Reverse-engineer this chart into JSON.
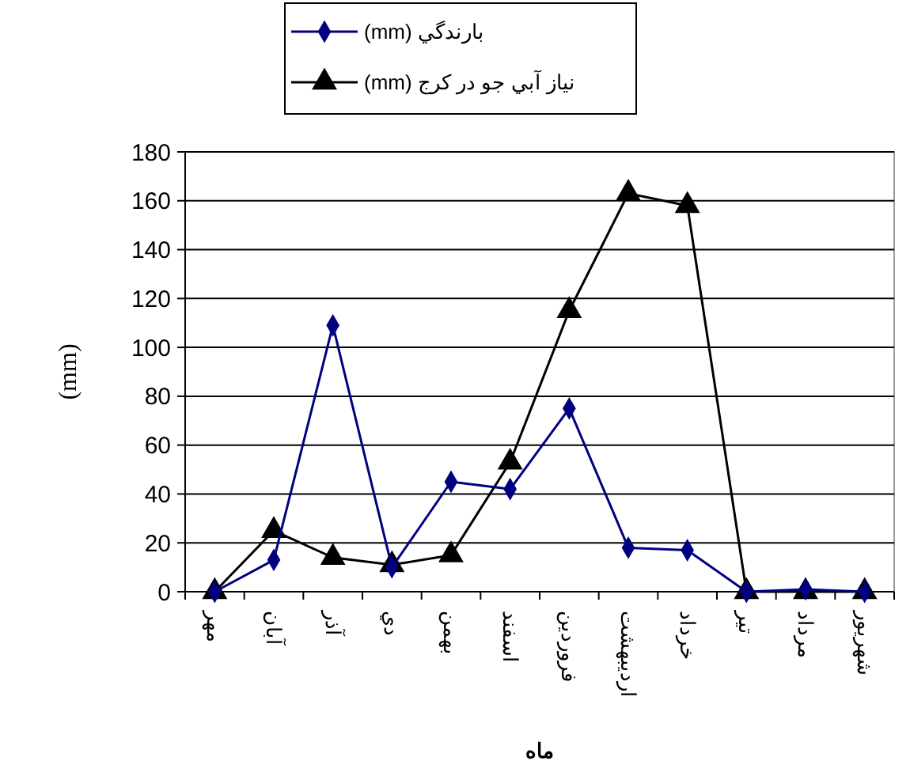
{
  "chart_data": {
    "type": "line",
    "xlabel": "ماه",
    "ylabel": "(mm)",
    "categories": [
      "مهر",
      "آبان",
      "آذر",
      "دي",
      "بهمن",
      "اسفند",
      "فروردين",
      "ارديبهشت",
      "خرداد",
      "تير",
      "مرداد",
      "شهريور"
    ],
    "series": [
      {
        "name": "بارندگي (mm)",
        "color": "#000080",
        "marker": "diamond",
        "values": [
          0,
          13,
          109,
          10,
          45,
          42,
          75,
          18,
          17,
          0,
          1,
          0
        ]
      },
      {
        "name": "نياز آبي جو در كرج (mm)",
        "color": "#000000",
        "marker": "triangle",
        "values": [
          0,
          25,
          14,
          11,
          15,
          53,
          115,
          163,
          158,
          0,
          0,
          0
        ]
      }
    ],
    "ylim": [
      0,
      180
    ],
    "yticks": [
      0,
      20,
      40,
      60,
      80,
      100,
      120,
      140,
      160,
      180
    ],
    "grid": "y",
    "legend": "top"
  }
}
